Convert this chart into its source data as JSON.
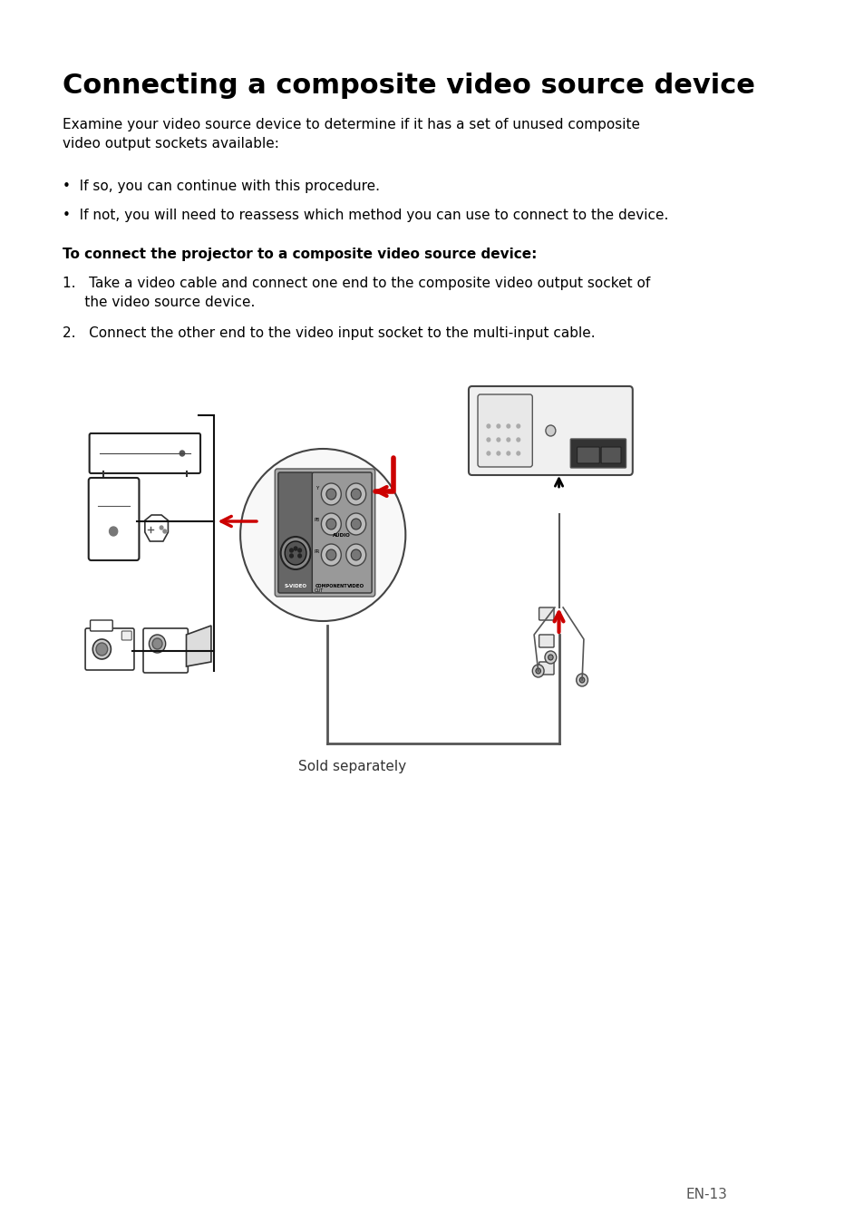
{
  "title": "Connecting a composite video source device",
  "body_text": "Examine your video source device to determine if it has a set of unused composite\nvideo output sockets available:",
  "bullet1": "•  If so, you can continue with this procedure.",
  "bullet2": "•  If not, you will need to reassess which method you can use to connect to the device.",
  "bold_heading": "To connect the projector to a composite video source device:",
  "step1": "1.   Take a video cable and connect one end to the composite video output socket of\n     the video source device.",
  "step2": "2.   Connect the other end to the video input socket to the multi-input cable.",
  "sold_separately": "Sold separately",
  "page_number": "EN-13",
  "bg_color": "#ffffff",
  "text_color": "#000000",
  "red_color": "#cc0000"
}
